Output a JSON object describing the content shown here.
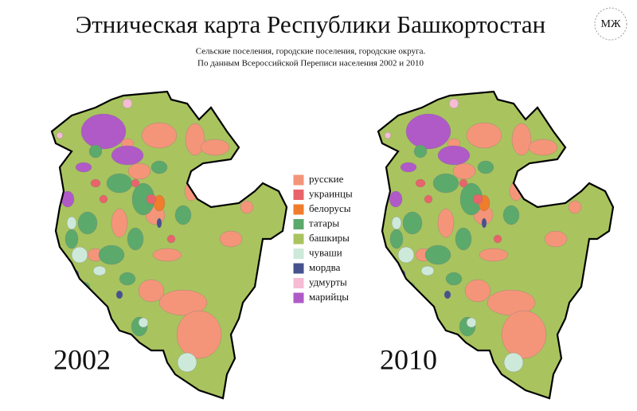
{
  "header": {
    "title": "Этническая карта Республики Башкортостан",
    "subtitle": [
      "Сельские поселения, городские поселения, городские округа.",
      "По данным Всероссийской Переписи населения  2002 и 2010"
    ],
    "logo": "МЖ"
  },
  "legend": [
    {
      "label": "русские",
      "color": "#f4957a"
    },
    {
      "label": "украинцы",
      "color": "#e8646a"
    },
    {
      "label": "белорусы",
      "color": "#f07d2b"
    },
    {
      "label": "татары",
      "color": "#5ca96c"
    },
    {
      "label": "башкиры",
      "color": "#a9c45e"
    },
    {
      "label": "чуваши",
      "color": "#cde9da"
    },
    {
      "label": "мордва",
      "color": "#46528e"
    },
    {
      "label": "удмурты",
      "color": "#f5bcd4"
    },
    {
      "label": "марийцы",
      "color": "#b05ac8"
    }
  ],
  "maps": [
    {
      "year": "2002"
    },
    {
      "year": "2010"
    }
  ]
}
